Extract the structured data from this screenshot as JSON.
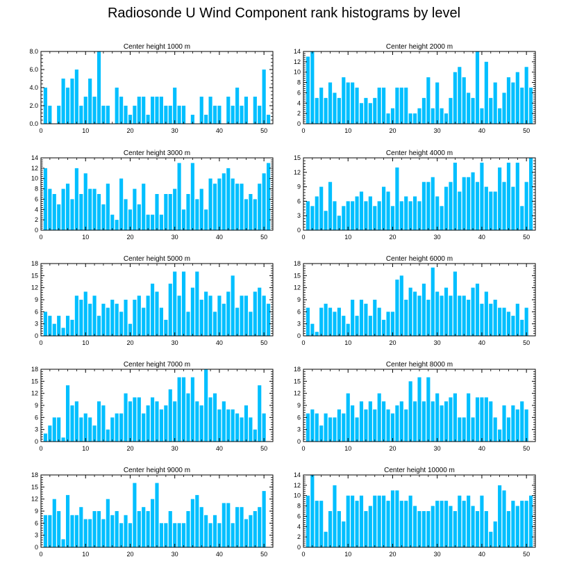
{
  "title": "Radiosonde U Wind Component rank histograms by level",
  "bar_color": "#00bfff",
  "chart_data": [
    {
      "type": "bar",
      "title": "Center height 1000 m",
      "ylim": [
        0,
        8
      ],
      "yticks": [
        "0.0",
        "2.0",
        "4.0",
        "6.0",
        "8.0"
      ],
      "xticks": [
        "0",
        "10",
        "20",
        "30",
        "40",
        "50"
      ],
      "values": [
        0,
        4,
        2,
        0,
        2,
        5,
        4,
        5,
        6,
        2,
        3,
        5,
        3,
        8,
        2,
        2,
        0,
        4,
        3,
        2,
        1,
        2,
        3,
        3,
        1,
        3,
        3,
        3,
        2,
        2,
        4,
        2,
        2,
        0,
        1,
        0,
        3,
        1,
        3,
        2,
        2,
        0,
        3,
        2,
        4,
        2,
        3,
        0,
        3,
        2,
        6,
        1
      ]
    },
    {
      "type": "bar",
      "title": "Center height 2000 m",
      "ylim": [
        0,
        14
      ],
      "yticks": [
        "0",
        "2",
        "4",
        "6",
        "8",
        "10",
        "12",
        "14"
      ],
      "xticks": [
        "0",
        "10",
        "20",
        "30",
        "40",
        "50"
      ],
      "values": [
        0,
        13,
        14,
        5,
        7,
        5,
        8,
        6,
        5,
        9,
        8,
        8,
        7,
        4,
        5,
        4,
        5,
        7,
        7,
        2,
        3,
        7,
        7,
        7,
        2,
        2,
        3,
        5,
        9,
        3,
        8,
        3,
        2,
        5,
        10,
        11,
        9,
        6,
        5,
        14,
        3,
        12,
        5,
        8,
        3,
        6,
        9,
        8,
        10,
        7,
        11,
        7
      ]
    },
    {
      "type": "bar",
      "title": "Center height 3000 m",
      "ylim": [
        0,
        14
      ],
      "yticks": [
        "0",
        "2",
        "4",
        "6",
        "8",
        "10",
        "12",
        "14"
      ],
      "xticks": [
        "0",
        "10",
        "20",
        "30",
        "40",
        "50"
      ],
      "values": [
        0,
        12,
        8,
        7,
        5,
        8,
        9,
        6,
        12,
        7,
        11,
        8,
        8,
        7,
        5,
        9,
        3,
        2,
        10,
        6,
        4,
        8,
        5,
        9,
        3,
        3,
        7,
        3,
        7,
        7,
        8,
        13,
        4,
        7,
        13,
        6,
        8,
        4,
        10,
        9,
        10,
        11,
        12,
        10,
        9,
        9,
        6,
        7,
        6,
        9,
        11,
        13
      ]
    },
    {
      "type": "bar",
      "title": "Center height 4000 m",
      "ylim": [
        0,
        15
      ],
      "yticks": [
        "0",
        "3",
        "6",
        "9",
        "12",
        "15"
      ],
      "xticks": [
        "0",
        "10",
        "20",
        "30",
        "40",
        "50"
      ],
      "values": [
        0,
        6,
        5,
        7,
        9,
        4,
        10,
        6,
        3,
        5,
        6,
        6,
        7,
        8,
        6,
        7,
        5,
        6,
        9,
        8,
        5,
        13,
        6,
        7,
        6,
        7,
        6,
        10,
        10,
        11,
        7,
        5,
        9,
        10,
        14,
        8,
        11,
        11,
        12,
        10,
        14,
        9,
        8,
        8,
        13,
        10,
        14,
        9,
        14,
        5,
        10,
        15
      ]
    },
    {
      "type": "bar",
      "title": "Center height 5000 m",
      "ylim": [
        0,
        18
      ],
      "yticks": [
        "0",
        "3",
        "6",
        "9",
        "12",
        "15",
        "18"
      ],
      "xticks": [
        "0",
        "10",
        "20",
        "30",
        "40",
        "50"
      ],
      "values": [
        0,
        6,
        5,
        3,
        5,
        2,
        5,
        4,
        10,
        9,
        11,
        8,
        10,
        5,
        8,
        7,
        9,
        8,
        6,
        9,
        3,
        9,
        10,
        7,
        10,
        13,
        11,
        7,
        4,
        13,
        16,
        10,
        16,
        6,
        12,
        16,
        9,
        11,
        10,
        6,
        10,
        8,
        11,
        15,
        7,
        10,
        10,
        6,
        11,
        12,
        10,
        8
      ]
    },
    {
      "type": "bar",
      "title": "Center height 6000 m",
      "ylim": [
        0,
        18
      ],
      "yticks": [
        "0",
        "3",
        "6",
        "9",
        "12",
        "15",
        "18"
      ],
      "xticks": [
        "0",
        "10",
        "20",
        "30",
        "40",
        "50"
      ],
      "values": [
        0,
        7,
        3,
        1,
        7,
        8,
        7,
        6,
        7,
        5,
        3,
        9,
        5,
        9,
        8,
        5,
        9,
        7,
        4,
        6,
        6,
        14,
        15,
        9,
        12,
        11,
        10,
        13,
        9,
        17,
        11,
        10,
        12,
        10,
        16,
        10,
        10,
        9,
        12,
        13,
        8,
        11,
        8,
        9,
        7,
        7,
        6,
        5,
        8,
        4,
        7,
        0
      ]
    },
    {
      "type": "bar",
      "title": "Center height 7000 m",
      "ylim": [
        0,
        18
      ],
      "yticks": [
        "0",
        "3",
        "6",
        "9",
        "12",
        "15",
        "18"
      ],
      "xticks": [
        "0",
        "10",
        "20",
        "30",
        "40",
        "50"
      ],
      "values": [
        0,
        2,
        4,
        6,
        6,
        1,
        14,
        9,
        10,
        6,
        7,
        6,
        4,
        10,
        9,
        3,
        6,
        7,
        7,
        12,
        10,
        11,
        11,
        7,
        9,
        11,
        10,
        8,
        9,
        13,
        10,
        16,
        16,
        12,
        16,
        10,
        9,
        18,
        11,
        12,
        8,
        10,
        8,
        8,
        7,
        6,
        9,
        6,
        3,
        14,
        7,
        0
      ]
    },
    {
      "type": "bar",
      "title": "Center height 8000 m",
      "ylim": [
        0,
        18
      ],
      "yticks": [
        "0",
        "3",
        "6",
        "9",
        "12",
        "15",
        "18"
      ],
      "xticks": [
        "0",
        "10",
        "20",
        "30",
        "40",
        "50"
      ],
      "values": [
        0,
        7,
        8,
        7,
        4,
        7,
        6,
        6,
        8,
        7,
        12,
        9,
        6,
        10,
        8,
        10,
        8,
        12,
        10,
        8,
        7,
        9,
        10,
        8,
        15,
        10,
        16,
        10,
        16,
        10,
        12,
        9,
        10,
        11,
        12,
        6,
        6,
        12,
        6,
        11,
        11,
        11,
        10,
        6,
        3,
        9,
        6,
        9,
        8,
        10,
        8,
        0
      ]
    },
    {
      "type": "bar",
      "title": "Center height 9000 m",
      "ylim": [
        0,
        18
      ],
      "yticks": [
        "0",
        "3",
        "6",
        "9",
        "12",
        "15",
        "18"
      ],
      "xticks": [
        "0",
        "10",
        "20",
        "30",
        "40",
        "50"
      ],
      "values": [
        0,
        8,
        8,
        12,
        9,
        2,
        13,
        8,
        8,
        10,
        7,
        7,
        9,
        9,
        7,
        12,
        8,
        9,
        6,
        8,
        6,
        16,
        9,
        10,
        9,
        12,
        16,
        6,
        6,
        9,
        6,
        6,
        6,
        9,
        12,
        13,
        10,
        8,
        6,
        8,
        6,
        11,
        11,
        6,
        10,
        10,
        7,
        8,
        9,
        10,
        14,
        0
      ]
    },
    {
      "type": "bar",
      "title": "Center height 10000 m",
      "ylim": [
        0,
        14
      ],
      "yticks": [
        "0",
        "2",
        "4",
        "6",
        "8",
        "10",
        "12",
        "14"
      ],
      "xticks": [
        "0",
        "10",
        "20",
        "30",
        "40",
        "50"
      ],
      "values": [
        0,
        10,
        14,
        9,
        9,
        3,
        7,
        12,
        7,
        5,
        10,
        10,
        9,
        10,
        7,
        8,
        10,
        10,
        10,
        9,
        11,
        11,
        9,
        9,
        10,
        8,
        7,
        7,
        7,
        8,
        9,
        9,
        9,
        8,
        7,
        10,
        9,
        10,
        8,
        7,
        10,
        7,
        3,
        5,
        12,
        11,
        7,
        9,
        8,
        9,
        9,
        10
      ]
    }
  ]
}
